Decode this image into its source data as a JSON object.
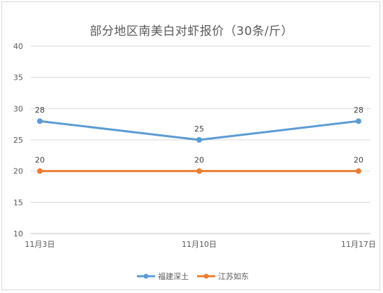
{
  "chart_data": {
    "type": "line",
    "title": "部分地区南美白对虾报价（30条/斤）",
    "categories": [
      "11月3日",
      "11月10日",
      "11月17日"
    ],
    "yticks": [
      "10",
      "15",
      "20",
      "25",
      "30",
      "35",
      "40"
    ],
    "ylim": [
      10,
      40
    ],
    "grid": true,
    "legend_position": "bottom",
    "series": [
      {
        "name": "福建深土",
        "values": [
          28,
          25,
          28
        ],
        "labels": [
          "28",
          "25",
          "28"
        ],
        "color": "#5B9BD5"
      },
      {
        "name": "江苏如东",
        "values": [
          20,
          20,
          20
        ],
        "labels": [
          "20",
          "20",
          "20"
        ],
        "color": "#ED7D31"
      }
    ]
  }
}
